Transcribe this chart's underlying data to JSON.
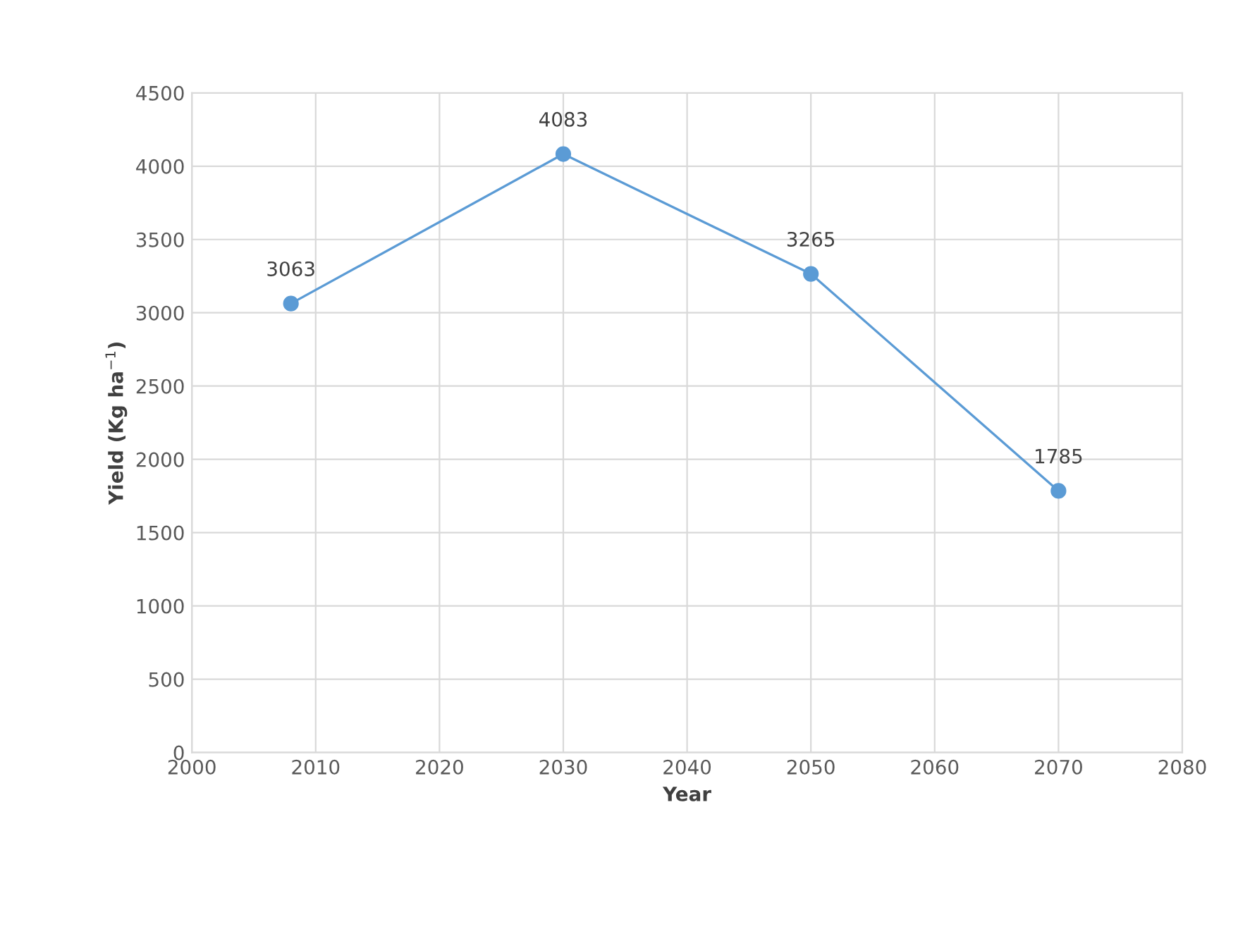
{
  "chart_data": {
    "type": "line",
    "xlabel": "Year",
    "ylabel": "Yield (Kg ha$^{−1}$)",
    "x": [
      2008,
      2030,
      2050,
      2070
    ],
    "series": [
      {
        "color": "#5b9bd5",
        "values": [
          3063,
          4083,
          3265,
          1785
        ]
      }
    ],
    "data_labels": true,
    "marker": "circle",
    "line_style": "solid",
    "xlim": [
      2000,
      2080
    ],
    "xticks": [
      2000,
      2010,
      2020,
      2030,
      2040,
      2050,
      2060,
      2070,
      2080
    ],
    "ylim": [
      0,
      4500
    ],
    "yticks": [
      0,
      500,
      1000,
      1500,
      2000,
      2500,
      3000,
      3500,
      4000,
      4500
    ],
    "grid": true,
    "legend": false
  }
}
